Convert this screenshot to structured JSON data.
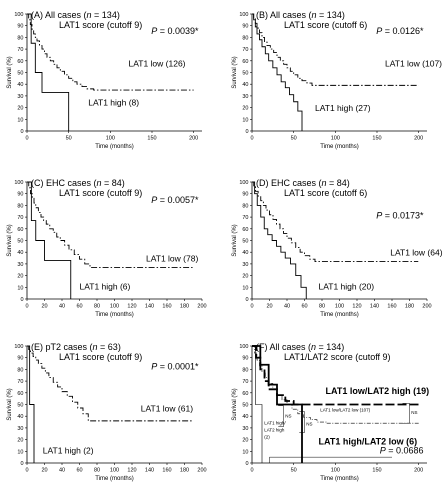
{
  "chart_data": [
    {
      "panel": "(A)",
      "type": "line",
      "header": [
        "All cases (",
        "n",
        " = 134)"
      ],
      "subheader": "LAT1 score (cutoff 9)",
      "p_value": [
        "P",
        " = 0.0039*"
      ],
      "xlabel": "Time (months)",
      "ylabel": "Survival (%)",
      "xlim": [
        0,
        210
      ],
      "ylim": [
        0,
        100
      ],
      "xticks": [
        0,
        50,
        100,
        150,
        200
      ],
      "yticks": [
        0,
        10,
        20,
        30,
        40,
        50,
        60,
        70,
        80,
        90,
        100
      ],
      "series": [
        {
          "name": "LAT1 low (126)",
          "style": "dashdot",
          "x": [
            0,
            2,
            4,
            6,
            8,
            10,
            12,
            15,
            18,
            21,
            24,
            28,
            32,
            36,
            40,
            45,
            50,
            55,
            60,
            66,
            72,
            80,
            90,
            200
          ],
          "y": [
            100,
            95,
            91,
            87,
            83,
            80,
            77,
            73,
            70,
            66,
            63,
            60,
            57,
            54,
            51,
            48,
            45,
            42,
            40,
            38,
            36,
            35,
            35,
            35
          ]
        },
        {
          "name": "LAT1 high (8)",
          "style": "solid",
          "x": [
            0,
            5,
            10,
            18,
            50,
            50
          ],
          "y": [
            100,
            75,
            50,
            33,
            33,
            0
          ]
        }
      ]
    },
    {
      "panel": "(B)",
      "type": "line",
      "header": [
        "All cases (",
        "n",
        " = 134)"
      ],
      "subheader": "LAT1 score (cutoff 6)",
      "p_value": [
        "P",
        " = 0.0126*"
      ],
      "xlabel": "Time (months)",
      "ylabel": "Survival (%)",
      "xlim": [
        0,
        210
      ],
      "ylim": [
        0,
        100
      ],
      "xticks": [
        0,
        50,
        100,
        150,
        200
      ],
      "yticks": [
        0,
        10,
        20,
        30,
        40,
        50,
        60,
        70,
        80,
        90,
        100
      ],
      "series": [
        {
          "name": "LAT1 low (107)",
          "style": "dashdot",
          "x": [
            0,
            2,
            4,
            6,
            9,
            12,
            15,
            18,
            22,
            26,
            30,
            34,
            38,
            42,
            46,
            50,
            55,
            60,
            66,
            72,
            200
          ],
          "y": [
            100,
            96,
            92,
            88,
            84,
            80,
            76,
            73,
            70,
            67,
            63,
            60,
            57,
            54,
            51,
            48,
            45,
            43,
            41,
            39,
            39
          ]
        },
        {
          "name": "LAT1 high (27)",
          "style": "solid",
          "x": [
            0,
            2,
            4,
            6,
            9,
            12,
            16,
            20,
            25,
            30,
            35,
            40,
            45,
            50,
            55,
            60,
            60
          ],
          "y": [
            100,
            95,
            89,
            83,
            78,
            72,
            66,
            60,
            54,
            48,
            42,
            37,
            31,
            25,
            17,
            10,
            0
          ]
        }
      ]
    },
    {
      "panel": "(C)",
      "type": "line",
      "header": [
        "EHC cases (",
        "n",
        " = 84)"
      ],
      "subheader": "LAT1 score (cutoff 9)",
      "p_value": [
        "P",
        " = 0.0057*"
      ],
      "xlabel": "Time (months)",
      "ylabel": "Survival (%)",
      "xlim": [
        0,
        200
      ],
      "ylim": [
        0,
        100
      ],
      "xticks": [
        0,
        20,
        40,
        60,
        80,
        100,
        120,
        140,
        160,
        180,
        200
      ],
      "yticks": [
        0,
        10,
        20,
        30,
        40,
        50,
        60,
        70,
        80,
        90,
        100
      ],
      "series": [
        {
          "name": "LAT1 low (78)",
          "style": "dashdot",
          "x": [
            0,
            2,
            4,
            6,
            8,
            10,
            13,
            16,
            19,
            22,
            26,
            30,
            34,
            38,
            43,
            48,
            54,
            60,
            66,
            72,
            190
          ],
          "y": [
            100,
            95,
            90,
            86,
            82,
            78,
            74,
            70,
            67,
            64,
            60,
            57,
            53,
            50,
            46,
            42,
            38,
            34,
            30,
            27,
            27
          ]
        },
        {
          "name": "LAT1 high (6)",
          "style": "solid",
          "x": [
            0,
            5,
            10,
            20,
            50,
            50
          ],
          "y": [
            100,
            67,
            50,
            33,
            33,
            0
          ]
        }
      ]
    },
    {
      "panel": "(D)",
      "type": "line",
      "header": [
        "EHC cases (",
        "n",
        " = 84)"
      ],
      "subheader": "LAT1 score (cutoff 6)",
      "p_value": [
        "P",
        " = 0.0173*"
      ],
      "xlabel": "Time (months)",
      "ylabel": "Survival (%)",
      "xlim": [
        0,
        200
      ],
      "ylim": [
        0,
        100
      ],
      "xticks": [
        0,
        20,
        40,
        60,
        80,
        100,
        120,
        140,
        160,
        180,
        200
      ],
      "yticks": [
        0,
        10,
        20,
        30,
        40,
        50,
        60,
        70,
        80,
        90,
        100
      ],
      "series": [
        {
          "name": "LAT1 low (64)",
          "style": "dashdot",
          "x": [
            0,
            2,
            4,
            7,
            10,
            13,
            16,
            20,
            24,
            28,
            32,
            36,
            40,
            45,
            50,
            55,
            60,
            66,
            72,
            190
          ],
          "y": [
            100,
            96,
            92,
            88,
            84,
            80,
            76,
            72,
            68,
            64,
            60,
            56,
            52,
            48,
            44,
            40,
            37,
            34,
            32,
            32
          ]
        },
        {
          "name": "LAT1 high (20)",
          "style": "solid",
          "x": [
            0,
            3,
            6,
            10,
            14,
            18,
            23,
            28,
            33,
            38,
            44,
            50,
            56,
            62,
            62
          ],
          "y": [
            100,
            90,
            80,
            70,
            60,
            55,
            50,
            45,
            40,
            35,
            30,
            20,
            10,
            10,
            0
          ]
        }
      ]
    },
    {
      "panel": "(E)",
      "type": "line",
      "header": [
        "pT2 cases (",
        "n",
        " = 63)"
      ],
      "subheader": "LAT1 score (cutoff 9)",
      "p_value": [
        "P",
        " = 0.0001*"
      ],
      "xlabel": "Time (months)",
      "ylabel": "Survival (%)",
      "xlim": [
        0,
        200
      ],
      "ylim": [
        0,
        100
      ],
      "xticks": [
        0,
        20,
        40,
        60,
        80,
        100,
        120,
        140,
        160,
        180,
        200
      ],
      "yticks": [
        0,
        10,
        20,
        30,
        40,
        50,
        60,
        70,
        80,
        90,
        100
      ],
      "series": [
        {
          "name": "LAT1 low (61)",
          "style": "dashdot",
          "x": [
            0,
            2,
            4,
            7,
            10,
            13,
            17,
            21,
            25,
            30,
            35,
            40,
            46,
            52,
            58,
            64,
            70,
            190
          ],
          "y": [
            100,
            97,
            94,
            91,
            88,
            85,
            81,
            77,
            73,
            69,
            65,
            61,
            57,
            52,
            47,
            42,
            36,
            36
          ]
        },
        {
          "name": "LAT1 high (2)",
          "style": "solid",
          "x": [
            0,
            3,
            3,
            8,
            8
          ],
          "y": [
            100,
            100,
            50,
            50,
            0
          ]
        }
      ]
    },
    {
      "panel": "(F)",
      "type": "line",
      "header": [
        "All cases (",
        "n",
        " = 134)"
      ],
      "subheader": "LAT1/LAT2 score (cutoff 9)",
      "p_value": [
        "P",
        " = 0.0686"
      ],
      "xlabel": "Time (months)",
      "ylabel": "Survival (%)",
      "xlim": [
        0,
        210
      ],
      "ylim": [
        0,
        100
      ],
      "xticks": [
        0,
        50,
        100,
        150,
        200
      ],
      "yticks": [
        0,
        10,
        20,
        30,
        40,
        50,
        60,
        70,
        80,
        90,
        100
      ],
      "annotations": [
        "NS",
        "NS",
        "NS"
      ],
      "series": [
        {
          "name": "LAT1 low/LAT2 high (19)",
          "style": "longdash",
          "x": [
            0,
            5,
            10,
            15,
            20,
            30,
            40,
            50,
            60,
            200
          ],
          "y": [
            100,
            90,
            80,
            70,
            63,
            58,
            53,
            50,
            50,
            50
          ]
        },
        {
          "name": "LAT1 low/LAT2 low (107)",
          "style": "dashdot-thin",
          "x": [
            0,
            3,
            6,
            9,
            12,
            16,
            20,
            25,
            30,
            36,
            42,
            48,
            55,
            62,
            70,
            78,
            90,
            200
          ],
          "y": [
            100,
            94,
            88,
            83,
            78,
            73,
            68,
            63,
            58,
            54,
            50,
            46,
            42,
            39,
            37,
            35,
            34,
            34
          ]
        },
        {
          "name": "LAT1 high/LAT2 low (6)",
          "style": "solid-bold",
          "x": [
            0,
            10,
            20,
            30,
            60,
            60
          ],
          "y": [
            100,
            84,
            67,
            50,
            50,
            0
          ]
        },
        {
          "name": "LAT1 high/ LAT2 high (2)",
          "style": "solid-thin",
          "x": [
            0,
            4,
            4,
            12,
            12
          ],
          "y": [
            100,
            100,
            50,
            50,
            0
          ]
        }
      ]
    }
  ]
}
